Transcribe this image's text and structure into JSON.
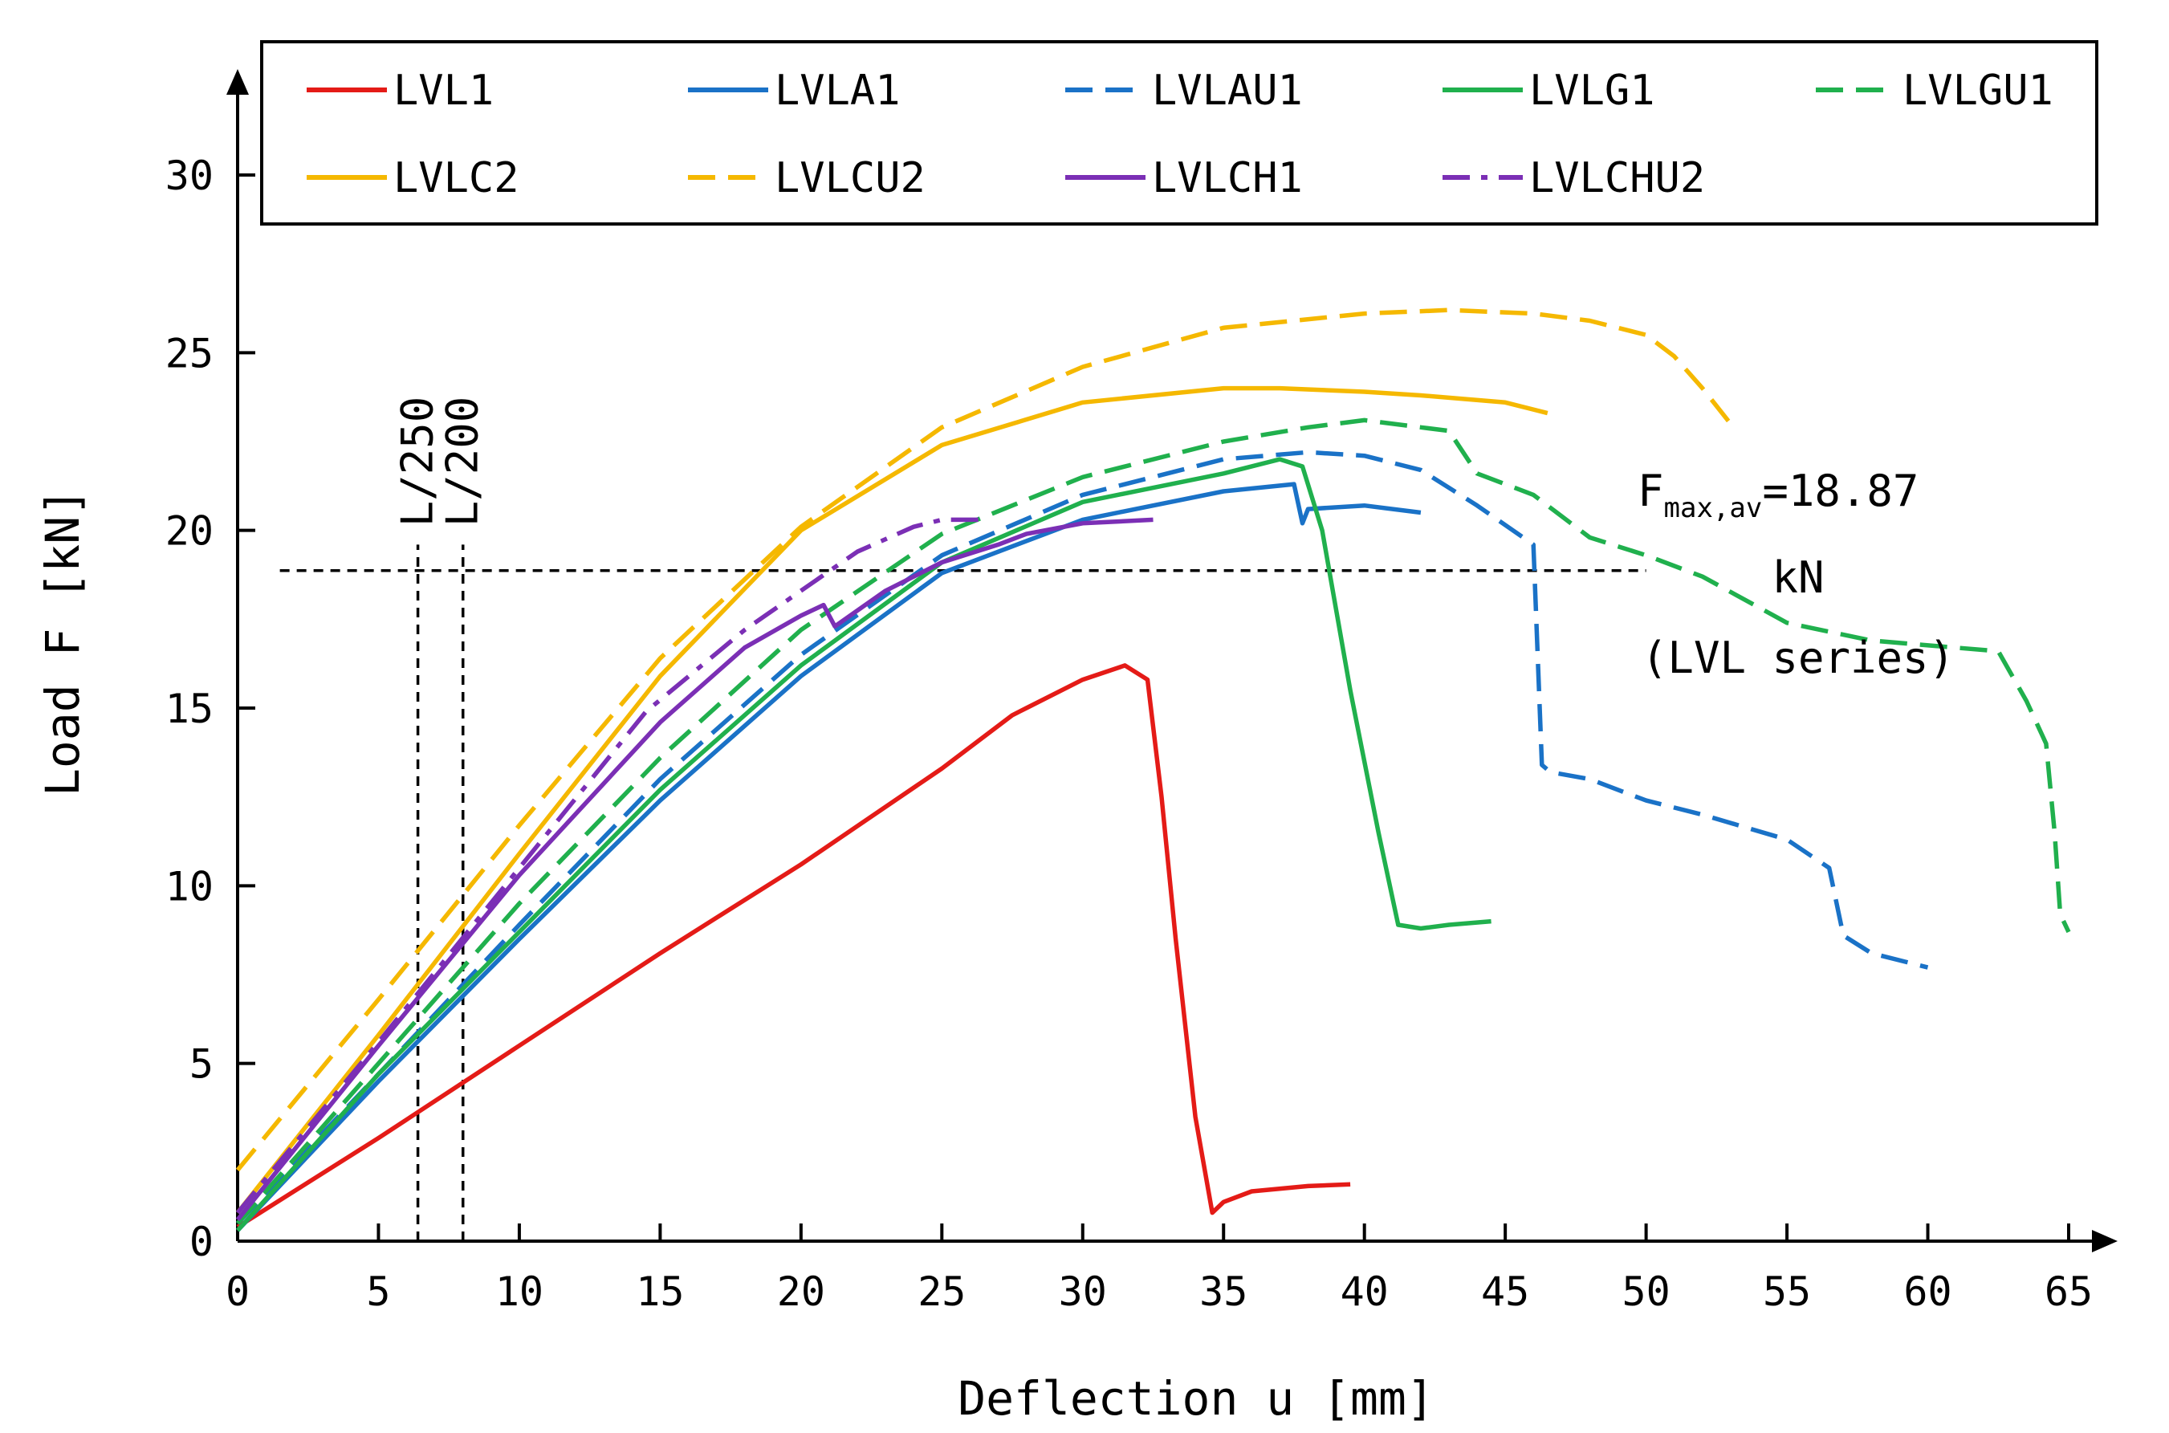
{
  "chart_data": {
    "type": "line",
    "xlabel": "Deflection u [mm]",
    "ylabel": "Load F [kN]",
    "xlim": [
      0,
      65
    ],
    "ylim": [
      0,
      32
    ],
    "xticks": [
      0,
      5,
      10,
      15,
      20,
      25,
      30,
      35,
      40,
      45,
      50,
      55,
      60,
      65
    ],
    "yticks": [
      0,
      5,
      10,
      15,
      20,
      25,
      30
    ],
    "grid": false,
    "legend_position": "top",
    "series": [
      {
        "name": "LVL1",
        "color": "#e41b17",
        "dash": "solid",
        "x": [
          0,
          5,
          10,
          15,
          20,
          25,
          27.5,
          28,
          30,
          31.5,
          32.3,
          32.8,
          33.3,
          34,
          34.6,
          35,
          36,
          38,
          39.5
        ],
        "y": [
          0.4,
          2.9,
          5.5,
          8.1,
          10.6,
          13.3,
          14.8,
          15,
          15.8,
          16.2,
          15.8,
          12.5,
          8.5,
          3.5,
          0.8,
          1.1,
          1.4,
          1.55,
          1.6
        ]
      },
      {
        "name": "LVLA1",
        "color": "#1a72c7",
        "dash": "solid",
        "x": [
          0,
          5,
          10,
          15,
          20,
          25,
          30,
          35,
          37.5,
          37.8,
          38,
          40,
          42
        ],
        "y": [
          0.3,
          4.5,
          8.5,
          12.4,
          15.9,
          18.8,
          20.3,
          21.1,
          21.3,
          20.2,
          20.6,
          20.7,
          20.5
        ]
      },
      {
        "name": "LVLAU1",
        "color": "#1a72c7",
        "dash": "dashed",
        "x": [
          0,
          5,
          10,
          15,
          20,
          25,
          30,
          35,
          38,
          40,
          42,
          44,
          46,
          46.3,
          46.6,
          48,
          50,
          52,
          55,
          56.5,
          57,
          58,
          60
        ],
        "y": [
          0.5,
          4.7,
          8.9,
          13.0,
          16.5,
          19.3,
          21.0,
          22.0,
          22.2,
          22.1,
          21.7,
          20.7,
          19.6,
          13.4,
          13.2,
          13.0,
          12.4,
          12.0,
          11.3,
          10.5,
          8.6,
          8.1,
          7.7
        ]
      },
      {
        "name": "LVLG1",
        "color": "#20b04d",
        "dash": "solid",
        "x": [
          0,
          5,
          10,
          15,
          20,
          25,
          30,
          35,
          37,
          37.8,
          38.5,
          39.5,
          40.5,
          41.2,
          42,
          43,
          44.5
        ],
        "y": [
          0.3,
          4.7,
          8.7,
          12.7,
          16.2,
          19.1,
          20.8,
          21.6,
          22.0,
          21.8,
          20.0,
          15.5,
          11.5,
          8.9,
          8.8,
          8.9,
          9.0
        ]
      },
      {
        "name": "LVLGU1",
        "color": "#20b04d",
        "dash": "dashed",
        "x": [
          0,
          5,
          10,
          15,
          20,
          25,
          30,
          35,
          38,
          40,
          42,
          43,
          44,
          46,
          48,
          50,
          52,
          55,
          58,
          62.5,
          63.5,
          64.2,
          64.5,
          64.7,
          65
        ],
        "y": [
          0.5,
          5.0,
          9.5,
          13.6,
          17.2,
          19.9,
          21.5,
          22.5,
          22.9,
          23.1,
          22.9,
          22.8,
          21.6,
          21.0,
          19.8,
          19.3,
          18.7,
          17.4,
          16.9,
          16.6,
          15.2,
          14.0,
          11.5,
          9.2,
          8.7
        ]
      },
      {
        "name": "LVLC2",
        "color": "#f5b800",
        "dash": "solid",
        "x": [
          0,
          5,
          10,
          15,
          20,
          25,
          30,
          35,
          37,
          40,
          42,
          45,
          46.5
        ],
        "y": [
          0.8,
          5.8,
          10.9,
          15.9,
          20.0,
          22.4,
          23.6,
          24.0,
          24.0,
          23.9,
          23.8,
          23.6,
          23.3
        ]
      },
      {
        "name": "LVLCU2",
        "color": "#f5b800",
        "dash": "dashed",
        "x": [
          0,
          5,
          10,
          15,
          20,
          25,
          30,
          35,
          40,
          43,
          46,
          48,
          50,
          51,
          52,
          53
        ],
        "y": [
          2.0,
          6.8,
          11.7,
          16.4,
          20.1,
          22.9,
          24.6,
          25.7,
          26.1,
          26.2,
          26.1,
          25.9,
          25.5,
          24.9,
          24.0,
          23.0
        ]
      },
      {
        "name": "LVLCH1",
        "color": "#7b2fb5",
        "dash": "solid",
        "x": [
          0,
          5,
          10,
          15,
          18,
          20,
          20.8,
          21.2,
          23,
          25,
          27,
          28,
          30,
          32.5
        ],
        "y": [
          0.6,
          5.5,
          10.3,
          14.6,
          16.7,
          17.6,
          17.9,
          17.3,
          18.3,
          19.1,
          19.6,
          19.9,
          20.2,
          20.3
        ]
      },
      {
        "name": "LVLCHU2",
        "color": "#7b2fb5",
        "dash": "dashdot",
        "x": [
          0,
          5,
          10,
          14.5,
          18,
          20,
          22,
          24,
          25,
          26.5
        ],
        "y": [
          0.8,
          5.6,
          10.5,
          14.9,
          17.2,
          18.3,
          19.4,
          20.1,
          20.3,
          20.3
        ]
      }
    ],
    "reference_lines": {
      "horizontal": {
        "y": 18.87,
        "x_range": [
          1.5,
          50
        ]
      },
      "vertical": [
        {
          "label": "L/250",
          "x": 6.4
        },
        {
          "label": "L/200",
          "x": 8.0
        }
      ],
      "y_range": [
        0,
        19.6
      ]
    },
    "annotation": {
      "symbol": "F",
      "subscript": "max,av",
      "value_text": "=18.87",
      "unit_text": "kN",
      "note": "(LVL series)"
    }
  }
}
